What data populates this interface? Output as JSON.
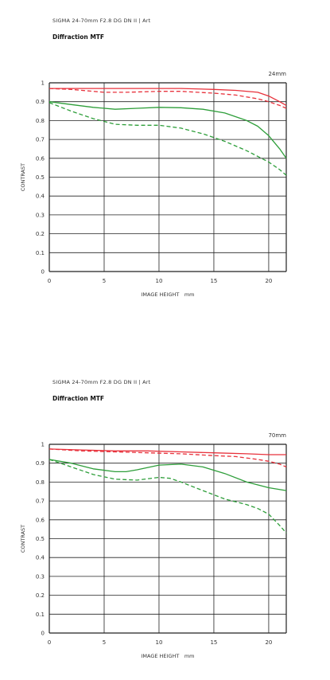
{
  "chart_data": [
    {
      "type": "line",
      "title": "SIGMA 24-70mm F2.8 DG DN II | Art",
      "subtitle": "Diffraction MTF",
      "focal_length": "24mm",
      "xlabel": "IMAGE HEIGHT　mm",
      "ylabel": "CONTRAST",
      "xlim": [
        0,
        21.6
      ],
      "ylim": [
        0,
        1
      ],
      "x_ticks": [
        0,
        5,
        10,
        15,
        20
      ],
      "y_ticks": [
        "0",
        "0.1",
        "0.2",
        "0.3",
        "0.4",
        "0.5",
        "0.6",
        "0.7",
        "0.8",
        "0.9",
        "1"
      ],
      "grid": true,
      "series": [
        {
          "color": "#e8323c",
          "dash": false,
          "x": [
            0,
            2,
            5,
            8,
            10,
            12,
            15,
            17,
            19,
            20,
            21,
            21.6
          ],
          "y": [
            0.97,
            0.97,
            0.97,
            0.97,
            0.97,
            0.97,
            0.965,
            0.96,
            0.95,
            0.93,
            0.9,
            0.88
          ]
        },
        {
          "color": "#e8323c",
          "dash": true,
          "x": [
            0,
            2,
            5,
            7,
            10,
            12,
            15,
            17,
            19,
            20,
            21,
            21.6
          ],
          "y": [
            0.97,
            0.965,
            0.95,
            0.95,
            0.955,
            0.955,
            0.945,
            0.935,
            0.915,
            0.9,
            0.88,
            0.865
          ]
        },
        {
          "color": "#2e9e3a",
          "dash": false,
          "x": [
            0,
            2,
            4,
            6,
            8,
            10,
            12,
            14,
            16,
            18,
            19,
            20,
            21,
            21.6
          ],
          "y": [
            0.9,
            0.885,
            0.87,
            0.86,
            0.865,
            0.87,
            0.868,
            0.86,
            0.84,
            0.8,
            0.77,
            0.72,
            0.65,
            0.6
          ]
        },
        {
          "color": "#2e9e3a",
          "dash": true,
          "x": [
            0,
            2,
            4,
            6,
            8,
            10,
            12,
            14,
            16,
            18,
            20,
            21,
            21.6
          ],
          "y": [
            0.895,
            0.85,
            0.81,
            0.78,
            0.775,
            0.775,
            0.76,
            0.73,
            0.69,
            0.64,
            0.58,
            0.54,
            0.51
          ]
        }
      ]
    },
    {
      "type": "line",
      "title": "SIGMA 24-70mm F2.8 DG DN II | Art",
      "subtitle": "Diffraction MTF",
      "focal_length": "70mm",
      "xlabel": "IMAGE HEIGHT　mm",
      "ylabel": "CONTRAST",
      "xlim": [
        0,
        21.6
      ],
      "ylim": [
        0,
        1
      ],
      "x_ticks": [
        0,
        5,
        10,
        15,
        20
      ],
      "y_ticks": [
        "0",
        "0.1",
        "0.2",
        "0.3",
        "0.4",
        "0.5",
        "0.6",
        "0.7",
        "0.8",
        "0.9",
        "1"
      ],
      "grid": true,
      "series": [
        {
          "color": "#e8323c",
          "dash": false,
          "x": [
            0,
            3,
            6,
            9,
            12,
            15,
            18,
            20,
            21.6
          ],
          "y": [
            0.975,
            0.97,
            0.965,
            0.965,
            0.96,
            0.955,
            0.95,
            0.945,
            0.945
          ]
        },
        {
          "color": "#e8323c",
          "dash": true,
          "x": [
            0,
            3,
            6,
            9,
            12,
            15,
            17,
            19,
            20,
            21,
            21.6
          ],
          "y": [
            0.975,
            0.965,
            0.96,
            0.955,
            0.95,
            0.94,
            0.935,
            0.92,
            0.91,
            0.895,
            0.88
          ]
        },
        {
          "color": "#2e9e3a",
          "dash": false,
          "x": [
            0,
            2,
            4,
            6,
            7,
            8,
            10,
            12,
            14,
            16,
            18,
            20,
            21.6
          ],
          "y": [
            0.92,
            0.9,
            0.87,
            0.855,
            0.855,
            0.865,
            0.89,
            0.895,
            0.88,
            0.845,
            0.8,
            0.77,
            0.755
          ]
        },
        {
          "color": "#2e9e3a",
          "dash": true,
          "x": [
            0,
            2,
            4,
            6,
            8,
            10,
            11,
            12,
            14,
            16,
            18,
            19,
            20,
            21,
            21.6
          ],
          "y": [
            0.92,
            0.88,
            0.84,
            0.815,
            0.81,
            0.825,
            0.82,
            0.8,
            0.755,
            0.71,
            0.68,
            0.66,
            0.63,
            0.57,
            0.53
          ]
        }
      ]
    }
  ]
}
